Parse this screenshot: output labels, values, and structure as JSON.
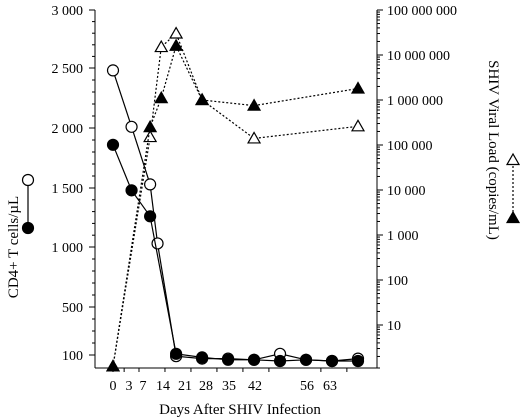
{
  "chart_data": {
    "type": "line",
    "xlabel": "Days After SHIV Infection",
    "ylabel_left": "CD4+ T cells/µL",
    "ylabel_right": "SHIV Viral Load (copies/mL)",
    "x_ticks": [
      0,
      3,
      7,
      14,
      21,
      28,
      35,
      42,
      56,
      63
    ],
    "x_tick_labels": [
      "0",
      "3",
      "7",
      "14",
      "21",
      "28",
      "35",
      "42",
      "56",
      "63"
    ],
    "y_left_ticks": [
      100,
      500,
      1000,
      1500,
      2000,
      2500,
      3000
    ],
    "y_left_tick_labels": [
      "100",
      "500",
      "1 000",
      "1 500",
      "2 000",
      "2 500",
      "3 000"
    ],
    "y_right_ticks": [
      10,
      100,
      1000,
      10000,
      100000,
      1000000,
      10000000,
      100000000
    ],
    "y_right_tick_labels": [
      "10",
      "100",
      "1 000",
      "10 000",
      "100 000",
      "1 000 000",
      "10 000 000",
      "100 000 000"
    ],
    "y_right_scale": "log",
    "series": [
      {
        "axis": "left",
        "marker": "open-circle",
        "line": "solid",
        "points": [
          [
            0,
            2480
          ],
          [
            5,
            2010
          ],
          [
            10,
            1530
          ],
          [
            12,
            1030
          ],
          [
            17,
            90
          ],
          [
            24,
            70
          ],
          [
            31,
            70
          ],
          [
            38,
            60
          ],
          [
            45,
            110
          ],
          [
            52,
            60
          ],
          [
            59,
            50
          ],
          [
            66,
            70
          ]
        ]
      },
      {
        "axis": "left",
        "marker": "filled-circle",
        "line": "solid",
        "points": [
          [
            0,
            1860
          ],
          [
            5,
            1480
          ],
          [
            10,
            1260
          ],
          [
            17,
            110
          ],
          [
            24,
            80
          ],
          [
            31,
            60
          ],
          [
            38,
            60
          ],
          [
            45,
            50
          ],
          [
            52,
            60
          ],
          [
            59,
            50
          ],
          [
            66,
            50
          ]
        ]
      },
      {
        "axis": "right",
        "marker": "open-triangle",
        "line": "dotted",
        "points": [
          [
            0,
            1.2
          ],
          [
            10,
            150000
          ],
          [
            13,
            15000000
          ],
          [
            17,
            30000000
          ],
          [
            24,
            1000000
          ],
          [
            38,
            140000
          ],
          [
            66,
            260000
          ]
        ]
      },
      {
        "axis": "right",
        "marker": "filled-triangle",
        "line": "dotted",
        "points": [
          [
            0,
            1.2
          ],
          [
            10,
            250000
          ],
          [
            13,
            1100000
          ],
          [
            17,
            16000000
          ],
          [
            24,
            1000000
          ],
          [
            38,
            750000
          ],
          [
            66,
            1800000
          ]
        ]
      }
    ]
  }
}
